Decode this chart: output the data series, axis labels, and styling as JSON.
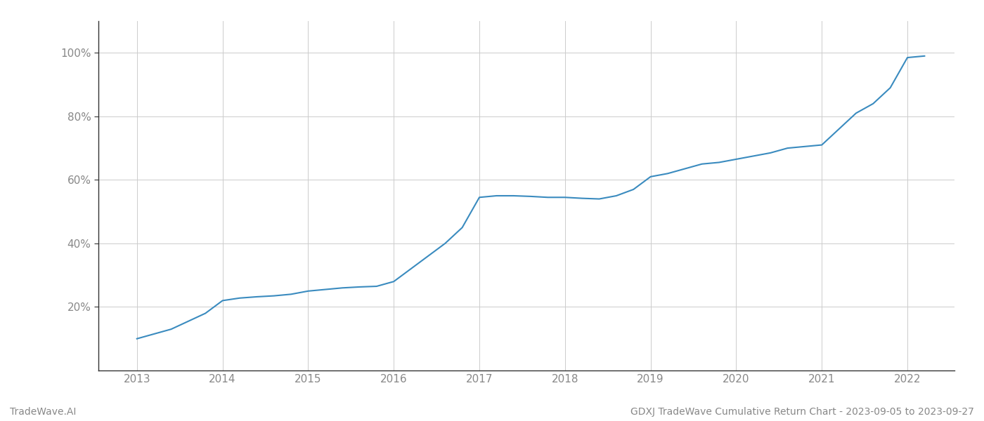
{
  "title": "GDXJ TradeWave Cumulative Return Chart - 2023-09-05 to 2023-09-27",
  "watermark": "TradeWave.AI",
  "line_color": "#3a8bbf",
  "background_color": "#ffffff",
  "grid_color": "#cccccc",
  "x_values": [
    2013.0,
    2013.2,
    2013.4,
    2013.6,
    2013.8,
    2014.0,
    2014.2,
    2014.4,
    2014.6,
    2014.8,
    2015.0,
    2015.2,
    2015.4,
    2015.6,
    2015.8,
    2016.0,
    2016.2,
    2016.4,
    2016.6,
    2016.8,
    2017.0,
    2017.2,
    2017.4,
    2017.6,
    2017.8,
    2018.0,
    2018.2,
    2018.4,
    2018.6,
    2018.8,
    2019.0,
    2019.2,
    2019.4,
    2019.6,
    2019.8,
    2020.0,
    2020.2,
    2020.4,
    2020.6,
    2020.8,
    2021.0,
    2021.2,
    2021.4,
    2021.6,
    2021.8,
    2022.0,
    2022.2
  ],
  "y_values": [
    10.0,
    11.5,
    13.0,
    15.5,
    18.0,
    22.0,
    22.8,
    23.2,
    23.5,
    24.0,
    25.0,
    25.5,
    26.0,
    26.3,
    26.5,
    28.0,
    32.0,
    36.0,
    40.0,
    45.0,
    54.5,
    55.0,
    55.0,
    54.8,
    54.5,
    54.5,
    54.2,
    54.0,
    55.0,
    57.0,
    61.0,
    62.0,
    63.5,
    65.0,
    65.5,
    66.5,
    67.5,
    68.5,
    70.0,
    70.5,
    71.0,
    76.0,
    81.0,
    84.0,
    89.0,
    98.5,
    99.0
  ],
  "yticks": [
    20,
    40,
    60,
    80,
    100
  ],
  "ytick_labels": [
    "20%",
    "40%",
    "60%",
    "80%",
    "100%"
  ],
  "xticks": [
    2013,
    2014,
    2015,
    2016,
    2017,
    2018,
    2019,
    2020,
    2021,
    2022
  ],
  "xlim": [
    2012.55,
    2022.55
  ],
  "ylim": [
    0,
    110
  ],
  "line_width": 1.5,
  "tick_label_color": "#888888",
  "title_color": "#888888",
  "watermark_color": "#888888",
  "spine_color": "#333333"
}
